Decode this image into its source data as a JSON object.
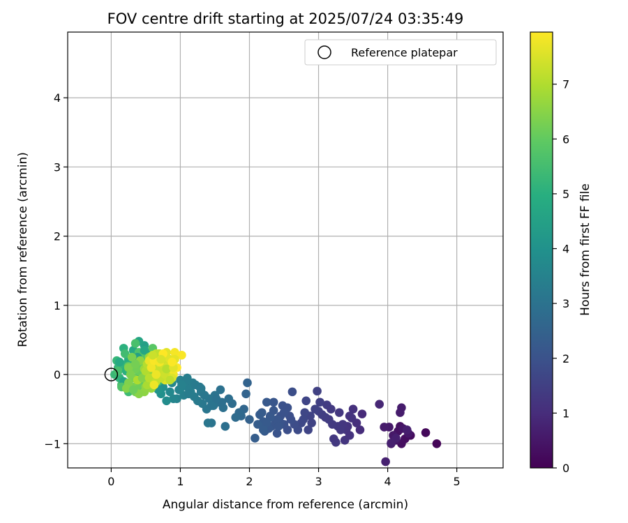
{
  "chart_data": {
    "type": "scatter",
    "title": "FOV centre drift starting at 2025/07/24 03:35:49",
    "xlabel": "Angular distance from reference (arcmin)",
    "ylabel": "Rotation from reference (arcmin)",
    "xlim": [
      -0.63,
      5.67
    ],
    "ylim": [
      -1.35,
      4.95
    ],
    "xticks": [
      0,
      1,
      2,
      3,
      4,
      5
    ],
    "xtick_labels": [
      "0",
      "1",
      "2",
      "3",
      "4",
      "5"
    ],
    "yticks": [
      -1,
      0,
      1,
      2,
      3,
      4
    ],
    "ytick_labels": [
      "−1",
      "0",
      "1",
      "2",
      "3",
      "4"
    ],
    "grid": true,
    "legend": {
      "placement": "upper-right",
      "entries": [
        "Reference platepar"
      ]
    },
    "colorbar": {
      "label": "Hours from first FF file",
      "range": [
        0,
        7.95
      ],
      "ticks": [
        0,
        1,
        2,
        3,
        4,
        5,
        6,
        7
      ],
      "tick_labels": [
        "0",
        "1",
        "2",
        "3",
        "4",
        "5",
        "6",
        "7"
      ],
      "colormap": "viridis"
    },
    "reference_point": {
      "x": 0,
      "y": 0,
      "label": "Reference platepar"
    },
    "series": [
      {
        "x": [
          4.71,
          4.55,
          4.33,
          4.25,
          4.2,
          4.18,
          4.15,
          4.1,
          4.05,
          4.12,
          4.22,
          4.3,
          4.08,
          4.02,
          3.95,
          4.2,
          4.18,
          4.28,
          4.12,
          4.05,
          3.97
        ],
        "y": [
          -1.0,
          -0.84,
          -0.88,
          -0.93,
          -1.0,
          -0.75,
          -0.82,
          -0.9,
          -1.0,
          -0.95,
          -0.78,
          -0.85,
          -0.88,
          -0.76,
          -0.76,
          -0.48,
          -0.55,
          -0.8,
          -0.92,
          -0.99,
          -1.26
        ],
        "t": [
          0.08,
          0.15,
          0.22,
          0.28,
          0.3,
          0.33,
          0.36,
          0.4,
          0.42,
          0.45,
          0.48,
          0.5,
          0.52,
          0.55,
          0.58,
          0.6,
          0.62,
          0.65,
          0.68,
          0.7,
          0.72
        ]
      },
      {
        "x": [
          3.88,
          3.63,
          3.6,
          3.55,
          3.5,
          3.48,
          3.45,
          3.42,
          3.4,
          3.38,
          3.35,
          3.3,
          3.28,
          3.25,
          3.2,
          3.15,
          3.12,
          3.1,
          3.05,
          3.02,
          3.0,
          2.98,
          2.95,
          2.9,
          2.88,
          2.85,
          2.82,
          2.8,
          2.78,
          2.75,
          3.22,
          3.45,
          3.32,
          3.18
        ],
        "y": [
          -0.43,
          -0.57,
          -0.8,
          -0.7,
          -0.5,
          -0.63,
          -0.6,
          -0.75,
          -0.8,
          -0.95,
          -0.72,
          -0.55,
          -0.75,
          -0.98,
          -0.72,
          -0.65,
          -0.44,
          -0.62,
          -0.58,
          -0.4,
          -0.53,
          -0.24,
          -0.5,
          -0.7,
          -0.6,
          -0.8,
          -0.38,
          -0.55,
          -0.65,
          -0.7,
          -0.93,
          -0.88,
          -0.8,
          -0.5
        ],
        "t": [
          0.85,
          0.95,
          1.0,
          1.05,
          1.1,
          1.12,
          1.15,
          1.18,
          1.2,
          1.22,
          1.25,
          1.28,
          1.3,
          1.32,
          1.35,
          1.38,
          1.4,
          1.42,
          1.45,
          1.48,
          1.5,
          1.52,
          1.55,
          1.58,
          1.6,
          1.62,
          1.65,
          1.68,
          1.7,
          1.72,
          1.3,
          1.15,
          1.3,
          1.35
        ]
      },
      {
        "x": [
          2.7,
          2.65,
          2.62,
          2.6,
          2.55,
          2.5,
          2.48,
          2.45,
          2.42,
          2.4,
          2.38,
          2.35,
          2.32,
          2.3,
          2.28,
          2.25,
          2.22,
          2.2,
          2.18,
          2.15,
          2.12,
          2.08,
          2.55,
          2.58,
          2.45,
          2.4,
          2.35,
          2.3,
          2.25,
          2.2,
          2.5,
          2.42
        ],
        "y": [
          -0.8,
          -0.72,
          -0.25,
          -0.65,
          -0.8,
          -0.72,
          -0.45,
          -0.6,
          -0.7,
          -0.85,
          -0.68,
          -0.4,
          -0.75,
          -0.6,
          -0.78,
          -0.4,
          -0.82,
          -0.68,
          -0.55,
          -0.58,
          -0.72,
          -0.92,
          -0.48,
          -0.6,
          -0.7,
          -0.65,
          -0.52,
          -0.62,
          -0.7,
          -0.8,
          -0.55,
          -0.75
        ],
        "t": [
          1.8,
          1.85,
          1.88,
          1.9,
          1.92,
          1.95,
          1.98,
          2.0,
          2.02,
          2.05,
          2.08,
          2.1,
          2.12,
          2.15,
          2.18,
          2.2,
          2.22,
          2.25,
          2.28,
          2.3,
          2.32,
          2.35,
          1.95,
          1.9,
          2.05,
          2.1,
          2.15,
          2.2,
          2.25,
          2.3,
          2.0,
          2.1
        ]
      },
      {
        "x": [
          2.0,
          1.97,
          1.95,
          1.92,
          1.88,
          1.85,
          1.8,
          1.75,
          1.7,
          1.65,
          1.62,
          1.58,
          1.55,
          1.5,
          1.48,
          1.45,
          1.42,
          1.4,
          1.38,
          1.35,
          1.32,
          1.3,
          1.28,
          1.25,
          1.2,
          1.18,
          1.15,
          1.12,
          1.1,
          1.05,
          1.02,
          1.0,
          0.98,
          0.95,
          1.22,
          1.08,
          1.6,
          1.52,
          1.45,
          1.35,
          1.3,
          1.12,
          1.02
        ],
        "y": [
          -0.65,
          -0.12,
          -0.28,
          -0.5,
          -0.6,
          -0.55,
          -0.62,
          -0.42,
          -0.35,
          -0.75,
          -0.48,
          -0.22,
          -0.4,
          -0.3,
          -0.45,
          -0.7,
          -0.35,
          -0.7,
          -0.5,
          -0.3,
          -0.42,
          -0.25,
          -0.18,
          -0.38,
          -0.32,
          -0.12,
          -0.25,
          -0.2,
          -0.05,
          -0.3,
          -0.18,
          -0.08,
          -0.22,
          -0.35,
          -0.15,
          -0.1,
          -0.4,
          -0.35,
          -0.45,
          -0.3,
          -0.2,
          -0.28,
          -0.15
        ],
        "t": [
          2.45,
          2.5,
          2.55,
          2.6,
          2.65,
          2.7,
          2.75,
          2.8,
          2.85,
          2.9,
          2.92,
          2.95,
          2.98,
          3.0,
          3.02,
          3.05,
          3.08,
          3.1,
          3.12,
          3.15,
          3.18,
          3.2,
          3.22,
          3.25,
          3.28,
          3.3,
          3.32,
          3.35,
          3.38,
          3.4,
          3.42,
          3.45,
          3.48,
          3.5,
          3.25,
          3.35,
          2.9,
          2.95,
          3.05,
          3.15,
          3.2,
          3.3,
          3.45
        ]
      },
      {
        "x": [
          0.9,
          0.88,
          0.85,
          0.82,
          0.8,
          0.78,
          0.75,
          0.72,
          0.7,
          0.68,
          0.65,
          0.62,
          0.6,
          0.58,
          0.55,
          0.52,
          0.5,
          0.48,
          0.45,
          0.42,
          0.4,
          0.38,
          0.35,
          0.32,
          0.3,
          0.28,
          0.25,
          0.22,
          0.2,
          0.18,
          0.15,
          0.12,
          0.1,
          0.08,
          0.05,
          0.3,
          0.25,
          0.2,
          0.15,
          0.1,
          0.35,
          0.4,
          0.45,
          0.5,
          0.55,
          0.6,
          0.65,
          0.7,
          0.28,
          0.18,
          0.12,
          0.22,
          0.32,
          0.42,
          0.38,
          0.48,
          0.52,
          0.62,
          0.68,
          0.72,
          0.15,
          0.25
        ],
        "y": [
          -0.35,
          -0.12,
          -0.25,
          -0.05,
          -0.38,
          0.05,
          -0.18,
          -0.28,
          0.08,
          -0.22,
          0.12,
          -0.08,
          0.22,
          -0.15,
          0.3,
          0.05,
          -0.18,
          0.42,
          0.15,
          -0.1,
          0.48,
          0.28,
          -0.05,
          0.35,
          0.18,
          0.0,
          0.22,
          -0.12,
          0.08,
          0.38,
          0.15,
          -0.05,
          0.1,
          0.2,
          0.0,
          -0.2,
          -0.25,
          0.3,
          -0.15,
          0.05,
          0.45,
          0.32,
          0.2,
          0.28,
          0.1,
          0.38,
          0.15,
          0.05,
          0.1,
          -0.1,
          0.18,
          0.05,
          -0.05,
          -0.08,
          0.25,
          0.35,
          -0.05,
          0.0,
          -0.1,
          0.18,
          -0.18,
          0.12
        ],
        "t": [
          3.6,
          3.65,
          3.7,
          3.75,
          3.8,
          3.85,
          3.9,
          3.95,
          4.0,
          4.05,
          4.1,
          4.15,
          4.2,
          4.25,
          4.3,
          4.35,
          4.4,
          4.45,
          4.5,
          4.55,
          4.6,
          4.65,
          4.7,
          4.75,
          4.8,
          4.85,
          4.9,
          4.95,
          5.0,
          5.05,
          5.1,
          5.15,
          5.2,
          5.25,
          5.3,
          5.35,
          5.4,
          5.45,
          5.5,
          5.55,
          5.6,
          5.65,
          5.7,
          5.75,
          5.8,
          5.85,
          5.9,
          5.95,
          4.4,
          4.6,
          4.8,
          5.0,
          5.2,
          5.4,
          4.5,
          4.7,
          4.9,
          5.1,
          5.3,
          5.5,
          5.7,
          5.9
        ]
      },
      {
        "x": [
          0.45,
          0.42,
          0.4,
          0.38,
          0.35,
          0.32,
          0.3,
          0.28,
          0.25,
          0.22,
          0.5,
          0.48,
          0.55,
          0.52,
          0.58,
          0.6,
          0.62,
          0.45,
          0.35,
          0.3,
          0.25,
          0.4,
          0.5,
          0.55,
          0.6,
          0.65,
          0.7,
          0.38,
          0.32,
          0.28,
          0.42,
          0.48,
          0.52,
          0.35,
          0.45,
          0.55,
          0.62,
          0.68
        ],
        "y": [
          -0.1,
          -0.2,
          0.05,
          -0.15,
          -0.25,
          -0.05,
          -0.18,
          0.1,
          -0.12,
          -0.2,
          0.0,
          -0.25,
          -0.1,
          0.12,
          -0.2,
          0.2,
          -0.05,
          0.15,
          0.08,
          0.25,
          0.1,
          -0.28,
          -0.18,
          0.25,
          0.05,
          0.15,
          0.3,
          -0.08,
          -0.22,
          0.0,
          0.2,
          0.08,
          -0.15,
          0.15,
          -0.05,
          0.05,
          -0.15,
          0.22
        ],
        "t": [
          6.0,
          6.05,
          6.1,
          6.15,
          6.2,
          6.25,
          6.3,
          6.35,
          6.4,
          6.45,
          6.5,
          6.55,
          6.6,
          6.65,
          6.7,
          6.75,
          6.8,
          6.1,
          6.2,
          6.3,
          6.4,
          6.5,
          6.6,
          6.7,
          6.8,
          6.85,
          6.9,
          6.95,
          6.15,
          6.35,
          6.55,
          6.75,
          6.9,
          6.25,
          6.45,
          6.65,
          6.85,
          6.95
        ]
      },
      {
        "x": [
          0.5,
          0.52,
          0.55,
          0.58,
          0.6,
          0.62,
          0.65,
          0.68,
          0.7,
          0.72,
          0.75,
          0.78,
          0.8,
          0.82,
          0.85,
          0.88,
          0.9,
          0.92,
          1.02,
          0.95,
          0.6,
          0.65,
          0.7,
          0.75,
          0.8,
          0.85,
          0.55,
          0.58,
          0.62,
          0.68,
          0.72,
          0.78,
          0.82,
          0.88,
          0.92,
          0.65,
          0.7,
          0.75,
          0.8,
          0.85,
          0.6,
          0.72,
          0.9,
          0.62,
          0.88
        ],
        "y": [
          0.05,
          0.15,
          -0.05,
          0.25,
          0.1,
          -0.1,
          0.3,
          0.18,
          0.0,
          0.12,
          0.25,
          -0.08,
          0.32,
          0.05,
          0.2,
          0.15,
          0.0,
          0.32,
          0.28,
          0.1,
          -0.05,
          -0.1,
          0.05,
          0.15,
          -0.02,
          0.22,
          0.2,
          0.1,
          0.2,
          0.3,
          -0.05,
          0.0,
          0.12,
          -0.05,
          0.22,
          0.0,
          0.18,
          0.3,
          0.08,
          -0.08,
          0.28,
          0.22,
          0.1,
          -0.15,
          0.18
        ],
        "t": [
          7.0,
          7.05,
          7.1,
          7.15,
          7.2,
          7.25,
          7.3,
          7.35,
          7.4,
          7.45,
          7.5,
          7.55,
          7.6,
          7.65,
          7.7,
          7.75,
          7.8,
          7.85,
          7.9,
          7.95,
          7.1,
          7.2,
          7.3,
          7.4,
          7.5,
          7.6,
          7.7,
          7.8,
          7.9,
          7.15,
          7.25,
          7.35,
          7.45,
          7.55,
          7.65,
          7.75,
          7.85,
          7.95,
          7.05,
          7.18,
          7.32,
          7.48,
          7.62,
          7.78,
          7.92
        ]
      }
    ]
  }
}
